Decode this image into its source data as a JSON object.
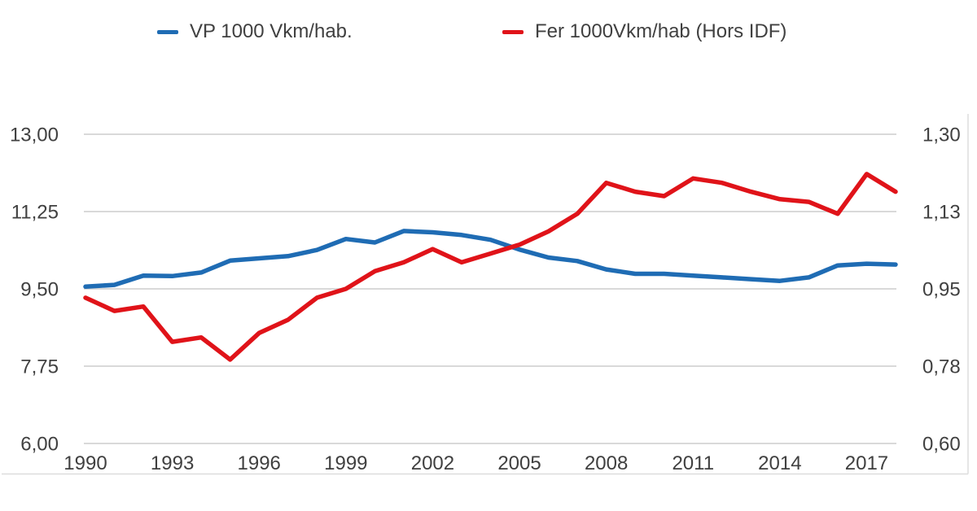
{
  "chart_data": {
    "type": "line",
    "title": "",
    "grid": true,
    "legend_position": "top",
    "x": [
      1990,
      1991,
      1992,
      1993,
      1994,
      1995,
      1996,
      1997,
      1998,
      1999,
      2000,
      2001,
      2002,
      2003,
      2004,
      2005,
      2006,
      2007,
      2008,
      2009,
      2010,
      2011,
      2012,
      2013,
      2014,
      2015,
      2016,
      2017,
      2018
    ],
    "series": [
      {
        "name": "VP 1000 Vkm/hab.",
        "axis": "left",
        "color": "#1F6CB4",
        "values": [
          9.55,
          9.59,
          9.8,
          9.79,
          9.87,
          10.14,
          10.19,
          10.24,
          10.38,
          10.63,
          10.55,
          10.81,
          10.78,
          10.72,
          10.61,
          10.39,
          10.21,
          10.13,
          9.94,
          9.84,
          9.84,
          9.8,
          9.76,
          9.72,
          9.68,
          9.76,
          10.03,
          10.07,
          10.05
        ]
      },
      {
        "name": "Fer 1000Vkm/hab (Hors IDF)",
        "axis": "right",
        "color": "#E01319",
        "values": [
          0.93,
          0.9,
          0.91,
          0.83,
          0.84,
          0.79,
          0.85,
          0.88,
          0.93,
          0.95,
          0.99,
          1.01,
          1.04,
          1.01,
          1.03,
          1.05,
          1.08,
          1.12,
          1.19,
          1.17,
          1.16,
          1.2,
          1.19,
          1.17,
          1.153,
          1.147,
          1.12,
          1.21,
          1.17
        ]
      }
    ],
    "left_axis": {
      "min": 6.0,
      "max": 13.0,
      "ticks": [
        {
          "value": 13.0,
          "label": "13,00"
        },
        {
          "value": 11.25,
          "label": "11,25"
        },
        {
          "value": 9.5,
          "label": "9,50"
        },
        {
          "value": 7.75,
          "label": "7,75"
        },
        {
          "value": 6.0,
          "label": "6,00"
        }
      ]
    },
    "right_axis": {
      "min": 0.6,
      "max": 1.3,
      "ticks": [
        {
          "value": 1.3,
          "label": "1,30"
        },
        {
          "value": 1.125,
          "label": "1,13"
        },
        {
          "value": 0.95,
          "label": "0,95"
        },
        {
          "value": 0.775,
          "label": "0,78"
        },
        {
          "value": 0.6,
          "label": "0,60"
        }
      ]
    },
    "x_axis": {
      "ticks": [
        {
          "year": 1990,
          "label": "1990"
        },
        {
          "year": 1993,
          "label": "1993"
        },
        {
          "year": 1996,
          "label": "1996"
        },
        {
          "year": 1999,
          "label": "1999"
        },
        {
          "year": 2002,
          "label": "2002"
        },
        {
          "year": 2005,
          "label": "2005"
        },
        {
          "year": 2008,
          "label": "2008"
        },
        {
          "year": 2011,
          "label": "2011"
        },
        {
          "year": 2014,
          "label": "2014"
        },
        {
          "year": 2017,
          "label": "2017"
        }
      ]
    }
  },
  "legend": {
    "items": [
      {
        "label": "VP 1000 Vkm/hab.",
        "color": "#1F6CB4"
      },
      {
        "label": "Fer 1000Vkm/hab (Hors IDF)",
        "color": "#E01319"
      }
    ]
  },
  "colors": {
    "gridline": "#D9D9D9",
    "frame": "#DDDDDD",
    "text": "#404040",
    "background": "#FFFFFF"
  }
}
